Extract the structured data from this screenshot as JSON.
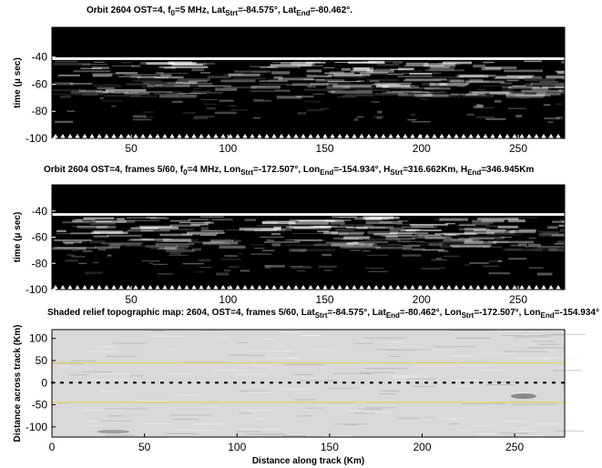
{
  "chart_data": [
    {
      "type": "image",
      "title": [
        "Orbit 2604 OST=4, f",
        "0",
        "=5 MHz, Lat",
        "Strt",
        "=-84.575°, Lat",
        "End",
        "=-80.462°."
      ],
      "y_label": "time (μ sec)",
      "xlim": [
        9,
        274
      ],
      "xticks": [
        50,
        100,
        150,
        200,
        250
      ],
      "ylim": [
        -100,
        -18
      ],
      "yticks": [
        -40,
        -60,
        -80,
        -100
      ]
    },
    {
      "type": "image",
      "title": [
        "Orbit 2604 OST=4, frames 5/60, f",
        "0",
        "=4 MHz, Lon",
        "Strt",
        "=-172.507°, Lon",
        "End",
        "=-154.934°, H",
        "Strt",
        "=316.662Km, H",
        "End",
        "=346.945Km"
      ],
      "y_label": "time (μ sec)",
      "xlim": [
        9,
        274
      ],
      "xticks": [
        50,
        100,
        150,
        200,
        250
      ],
      "ylim": [
        -100,
        -20
      ],
      "yticks": [
        -40,
        -60,
        -80,
        -100
      ]
    },
    {
      "type": "relief",
      "title": [
        "Shaded relief topographic map: 2604, OST=4, frames 5/60, Lat",
        "Strt",
        "=-84.575°, Lat",
        "End",
        "=-80.462°, Lon",
        "Strt",
        "=-172.507°, Lon",
        "End",
        "=-154.934°"
      ],
      "y_label": "Distance across track (Km)",
      "x_label": "Distance along track (Km)",
      "xlim": [
        0,
        277
      ],
      "xticks": [
        0,
        50,
        100,
        150,
        200,
        250
      ],
      "ylim": [
        -123,
        120
      ],
      "yticks": [
        100,
        50,
        0,
        -50,
        -100
      ],
      "hlines": [
        {
          "value": 45,
          "color": "#e3d35a",
          "style": "solid"
        },
        {
          "value": 0,
          "color": "#000000",
          "style": "dotted"
        },
        {
          "value": -45,
          "color": "#e3d35a",
          "style": "solid"
        }
      ]
    }
  ]
}
